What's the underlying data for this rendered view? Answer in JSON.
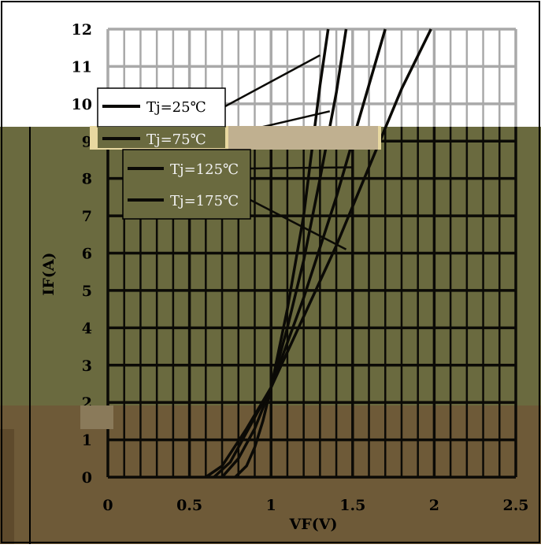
{
  "chart_data": {
    "type": "line",
    "title": "",
    "xlabel": "VF(V)",
    "ylabel": "IF(A)",
    "xlim": [
      0,
      2.5
    ],
    "ylim": [
      0,
      12
    ],
    "x_ticks": [
      "0",
      "0.5",
      "1",
      "1.5",
      "2",
      "2.5"
    ],
    "y_ticks": [
      "0",
      "1",
      "2",
      "3",
      "4",
      "5",
      "6",
      "7",
      "8",
      "9",
      "10",
      "11",
      "12"
    ],
    "grid": true,
    "legend_position": "upper-left, inside plot",
    "series": [
      {
        "name": "Tj=25℃",
        "points": [
          [
            0.78,
            0
          ],
          [
            0.85,
            0.3
          ],
          [
            0.9,
            0.8
          ],
          [
            0.95,
            1.5
          ],
          [
            1.0,
            2.4
          ],
          [
            1.1,
            4.5
          ],
          [
            1.2,
            7.0
          ],
          [
            1.3,
            10.5
          ],
          [
            1.35,
            12
          ]
        ]
      },
      {
        "name": "Tj=75℃",
        "points": [
          [
            0.7,
            0
          ],
          [
            0.8,
            0.5
          ],
          [
            0.9,
            1.3
          ],
          [
            1.0,
            2.4
          ],
          [
            1.1,
            4.0
          ],
          [
            1.2,
            5.8
          ],
          [
            1.3,
            8.0
          ],
          [
            1.4,
            10.3
          ],
          [
            1.46,
            12
          ]
        ]
      },
      {
        "name": "Tj=125℃",
        "points": [
          [
            0.65,
            0
          ],
          [
            0.75,
            0.4
          ],
          [
            0.85,
            1.2
          ],
          [
            1.0,
            2.4
          ],
          [
            1.2,
            4.8
          ],
          [
            1.4,
            7.5
          ],
          [
            1.6,
            10.5
          ],
          [
            1.7,
            12
          ]
        ]
      },
      {
        "name": "Tj=175℃",
        "points": [
          [
            0.6,
            0
          ],
          [
            0.7,
            0.3
          ],
          [
            0.85,
            1.3
          ],
          [
            1.0,
            2.4
          ],
          [
            1.2,
            4.3
          ],
          [
            1.4,
            6.2
          ],
          [
            1.6,
            8.3
          ],
          [
            1.8,
            10.4
          ],
          [
            1.98,
            12
          ]
        ]
      }
    ],
    "colors": {
      "line": "#0b0a06",
      "grid_upper": "#a9a9a9",
      "grid_lower": "#0b0a06",
      "band_olive": "#6a6a3f",
      "band_brown": "#6e5a38",
      "frame": "#000000"
    }
  }
}
